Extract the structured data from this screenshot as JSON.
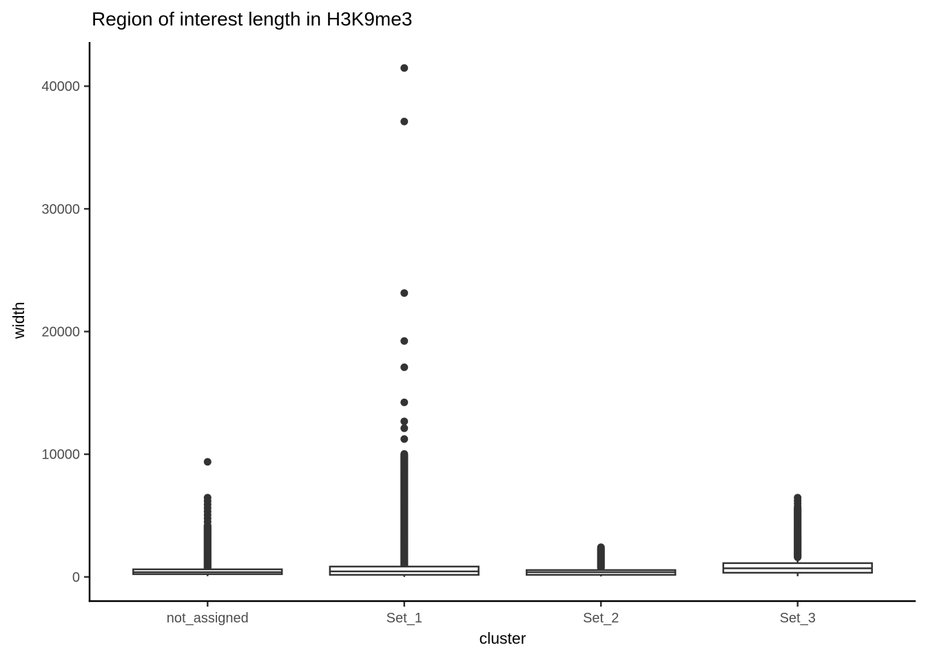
{
  "chart_data": {
    "type": "boxplot",
    "title": "Region of interest length in H3K9me3",
    "xlabel": "cluster",
    "ylabel": "width",
    "categories": [
      "not_assigned",
      "Set_1",
      "Set_2",
      "Set_3"
    ],
    "yticks": [
      0,
      10000,
      20000,
      30000,
      40000
    ],
    "ylim": [
      -1970,
      43600
    ],
    "grid": "off",
    "legend": "none",
    "colors": {
      "box_stroke": "#333333",
      "box_fill": "#ffffff",
      "outlier_dot": "#333333",
      "axis_line": "#000000",
      "tick_label": "#4d4d4d"
    },
    "boxes": [
      {
        "category": "not_assigned",
        "whisker_low": 60,
        "q1": 225,
        "median": 390,
        "q3": 620,
        "whisker_high": 620,
        "outliers": [
          9380,
          6460,
          6180,
          5900,
          5620,
          5340,
          5060,
          4780,
          4500
        ],
        "outlier_runs": [
          {
            "from": 730,
            "to": 4250,
            "step": 56
          }
        ]
      },
      {
        "category": "Set_1",
        "whisker_low": 0,
        "q1": 170,
        "median": 450,
        "q3": 845,
        "whisker_high": 845,
        "outliers": [
          41480,
          37120,
          23140,
          19230,
          17090,
          14230,
          12680,
          12120,
          11240
        ],
        "outlier_runs": [
          {
            "from": 900,
            "to": 10060,
            "step": 56
          }
        ]
      },
      {
        "category": "Set_2",
        "whisker_low": 40,
        "q1": 170,
        "median": 390,
        "q3": 560,
        "whisker_high": 560,
        "outliers": [
          2420
        ],
        "outlier_runs": [
          {
            "from": 730,
            "to": 2350,
            "step": 62
          }
        ]
      },
      {
        "category": "Set_3",
        "whisker_low": 60,
        "q1": 340,
        "median": 700,
        "q3": 1125,
        "whisker_high": 1970,
        "outliers": [
          6460,
          6230,
          6000,
          5770
        ],
        "outlier_runs": [
          {
            "from": 1600,
            "to": 5660,
            "step": 56
          }
        ]
      }
    ]
  }
}
